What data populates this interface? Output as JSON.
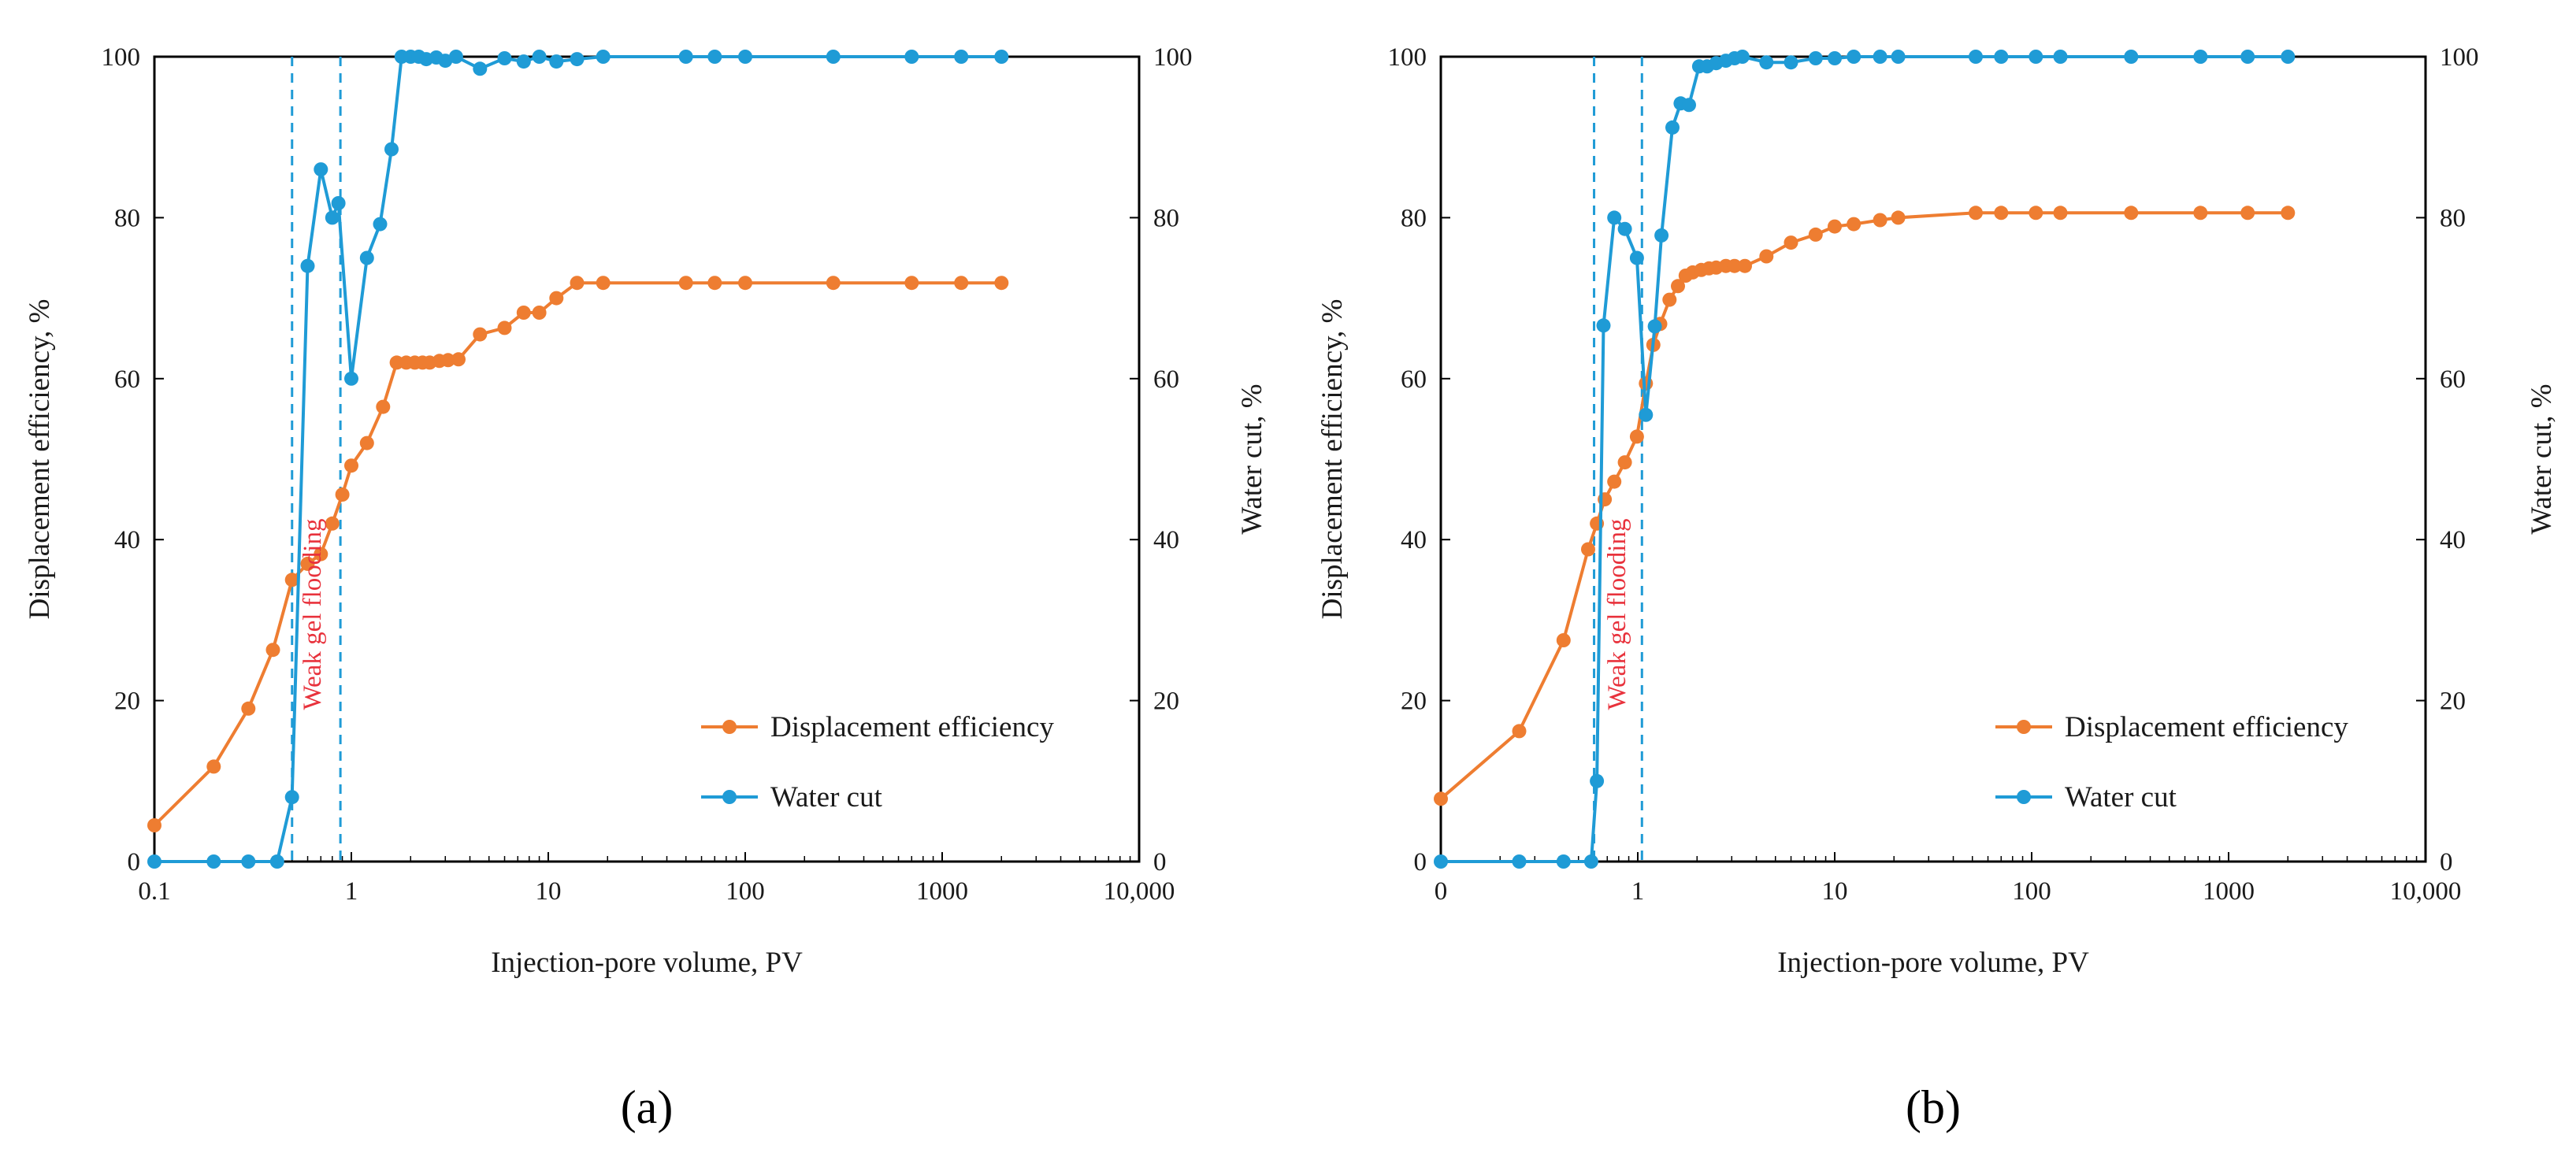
{
  "chart_data": [
    {
      "type": "line",
      "panel_label": "(a)",
      "xlabel": "Injection-pore volume, PV",
      "ylabel": "Displacement efficiency, %",
      "y2label": "Water cut, %",
      "x_scale": "log",
      "xlim": [
        0.1,
        10000
      ],
      "ylim": [
        0,
        100
      ],
      "y2lim": [
        0,
        100
      ],
      "x_tick_labels": [
        "0.1",
        "1",
        "10",
        "100",
        "1000",
        "10,000"
      ],
      "y_tick_labels": [
        "0",
        "20",
        "40",
        "60",
        "80",
        "100"
      ],
      "y2_tick_labels": [
        "0",
        "20",
        "40",
        "60",
        "80",
        "100"
      ],
      "annotation": "Weak gel flooding",
      "annotation_lines_x": [
        0.5,
        0.88
      ],
      "legend_position": "lower-right",
      "series": [
        {
          "name": "Displacement efficiency",
          "color": "#ee7d31",
          "axis": "left",
          "points": [
            [
              0.1,
              4.5
            ],
            [
              0.2,
              11.8
            ],
            [
              0.3,
              19
            ],
            [
              0.4,
              26.3
            ],
            [
              0.5,
              35
            ],
            [
              0.6,
              37
            ],
            [
              0.7,
              38.2
            ],
            [
              0.8,
              42
            ],
            [
              0.9,
              45.6
            ],
            [
              1.0,
              49.2
            ],
            [
              1.2,
              52
            ],
            [
              1.45,
              56.5
            ],
            [
              1.7,
              62
            ],
            [
              1.9,
              62
            ],
            [
              2.1,
              62
            ],
            [
              2.3,
              62
            ],
            [
              2.5,
              62
            ],
            [
              2.8,
              62.2
            ],
            [
              3.1,
              62.3
            ],
            [
              3.5,
              62.4
            ],
            [
              4.5,
              65.5
            ],
            [
              6,
              66.3
            ],
            [
              7.5,
              68.2
            ],
            [
              9,
              68.2
            ],
            [
              11,
              70
            ],
            [
              14,
              71.9
            ],
            [
              19,
              71.9
            ],
            [
              50,
              71.9
            ],
            [
              70,
              71.9
            ],
            [
              100,
              71.9
            ],
            [
              280,
              71.9
            ],
            [
              700,
              71.9
            ],
            [
              1250,
              71.9
            ],
            [
              2000,
              71.9
            ]
          ]
        },
        {
          "name": "Water cut",
          "color": "#1f9bd6",
          "axis": "right",
          "points": [
            [
              0.1,
              0
            ],
            [
              0.2,
              0
            ],
            [
              0.3,
              0
            ],
            [
              0.42,
              0
            ],
            [
              0.5,
              8
            ],
            [
              0.6,
              74
            ],
            [
              0.7,
              86
            ],
            [
              0.8,
              80
            ],
            [
              0.86,
              81.8
            ],
            [
              1.0,
              60
            ],
            [
              1.2,
              75
            ],
            [
              1.4,
              79.2
            ],
            [
              1.6,
              88.5
            ],
            [
              1.8,
              100
            ],
            [
              2.0,
              100
            ],
            [
              2.2,
              100
            ],
            [
              2.4,
              99.7
            ],
            [
              2.7,
              99.9
            ],
            [
              3.0,
              99.5
            ],
            [
              3.4,
              100
            ],
            [
              4.5,
              98.5
            ],
            [
              6,
              99.8
            ],
            [
              7.5,
              99.4
            ],
            [
              9,
              100
            ],
            [
              11,
              99.4
            ],
            [
              14,
              99.7
            ],
            [
              19,
              100
            ],
            [
              50,
              100
            ],
            [
              70,
              100
            ],
            [
              100,
              100
            ],
            [
              280,
              100
            ],
            [
              700,
              100
            ],
            [
              1250,
              100
            ],
            [
              2000,
              100
            ]
          ]
        }
      ]
    },
    {
      "type": "line",
      "panel_label": "(b)",
      "xlabel": "Injection-pore volume, PV",
      "ylabel": "Displacement efficiency, %",
      "y2label": "Water cut, %",
      "x_scale": "log",
      "xlim": [
        0.1,
        10000
      ],
      "ylim": [
        0,
        100
      ],
      "y2lim": [
        0,
        100
      ],
      "x_tick_labels": [
        "0",
        "1",
        "10",
        "100",
        "1000",
        "10,000"
      ],
      "y_tick_labels": [
        "0",
        "20",
        "40",
        "60",
        "80",
        "100"
      ],
      "y2_tick_labels": [
        "0",
        "20",
        "40",
        "60",
        "80",
        "100"
      ],
      "annotation": "Weak gel flooding",
      "annotation_lines_x": [
        0.6,
        1.05
      ],
      "legend_position": "lower-right",
      "series": [
        {
          "name": "Displacement efficiency",
          "color": "#ee7d31",
          "axis": "left",
          "points": [
            [
              0.1,
              7.8
            ],
            [
              0.25,
              16.2
            ],
            [
              0.42,
              27.5
            ],
            [
              0.56,
              38.8
            ],
            [
              0.62,
              42
            ],
            [
              0.68,
              45
            ],
            [
              0.76,
              47.2
            ],
            [
              0.86,
              49.6
            ],
            [
              0.99,
              52.8
            ],
            [
              1.1,
              59.4
            ],
            [
              1.2,
              64.2
            ],
            [
              1.3,
              66.8
            ],
            [
              1.45,
              69.8
            ],
            [
              1.6,
              71.5
            ],
            [
              1.75,
              72.8
            ],
            [
              1.9,
              73.2
            ],
            [
              2.1,
              73.5
            ],
            [
              2.3,
              73.7
            ],
            [
              2.5,
              73.8
            ],
            [
              2.8,
              74
            ],
            [
              3.1,
              74
            ],
            [
              3.5,
              74
            ],
            [
              4.5,
              75.2
            ],
            [
              6,
              76.9
            ],
            [
              8,
              77.9
            ],
            [
              10,
              78.9
            ],
            [
              12.5,
              79.2
            ],
            [
              17,
              79.7
            ],
            [
              21,
              80
            ],
            [
              52,
              80.6
            ],
            [
              70,
              80.6
            ],
            [
              105,
              80.6
            ],
            [
              140,
              80.6
            ],
            [
              320,
              80.6
            ],
            [
              720,
              80.6
            ],
            [
              1250,
              80.6
            ],
            [
              2000,
              80.6
            ]
          ]
        },
        {
          "name": "Water cut",
          "color": "#1f9bd6",
          "axis": "right",
          "points": [
            [
              0.1,
              0
            ],
            [
              0.25,
              0
            ],
            [
              0.42,
              0
            ],
            [
              0.58,
              0
            ],
            [
              0.62,
              10
            ],
            [
              0.67,
              66.6
            ],
            [
              0.76,
              80
            ],
            [
              0.86,
              78.6
            ],
            [
              0.99,
              75
            ],
            [
              1.1,
              55.5
            ],
            [
              1.22,
              66.5
            ],
            [
              1.32,
              77.8
            ],
            [
              1.5,
              91.2
            ],
            [
              1.65,
              94.2
            ],
            [
              1.82,
              94
            ],
            [
              2.05,
              98.8
            ],
            [
              2.25,
              98.8
            ],
            [
              2.5,
              99.2
            ],
            [
              2.8,
              99.5
            ],
            [
              3.1,
              99.8
            ],
            [
              3.4,
              100
            ],
            [
              4.5,
              99.3
            ],
            [
              6,
              99.3
            ],
            [
              8,
              99.8
            ],
            [
              10,
              99.8
            ],
            [
              12.5,
              100
            ],
            [
              17,
              100
            ],
            [
              21,
              100
            ],
            [
              52,
              100
            ],
            [
              70,
              100
            ],
            [
              105,
              100
            ],
            [
              140,
              100
            ],
            [
              320,
              100
            ],
            [
              720,
              100
            ],
            [
              1250,
              100
            ],
            [
              2000,
              100
            ]
          ]
        }
      ]
    }
  ]
}
